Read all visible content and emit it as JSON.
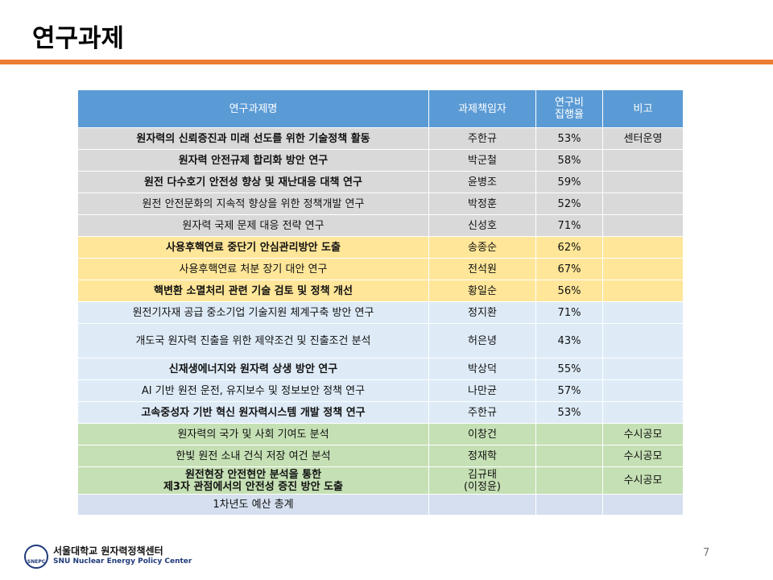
{
  "header": {
    "title": "연구과제"
  },
  "table": {
    "columns": [
      "연구과제명",
      "과제책임자",
      "연구비\n집행율",
      "비고"
    ],
    "rows": [
      {
        "cells": [
          "원자력의 신뢰증진과 미래 선도를 위한 기술정책 활동",
          "주한규",
          "53%",
          "센터운영"
        ],
        "bold": true,
        "color": "#d9d9d9"
      },
      {
        "cells": [
          "원자력 안전규제 합리화 방안 연구",
          "박군철",
          "58%",
          ""
        ],
        "bold": true,
        "color": "#d9d9d9"
      },
      {
        "cells": [
          "원전 다수호기 안전성 향상 및 재난대응 대책 연구",
          "윤병조",
          "59%",
          ""
        ],
        "bold": true,
        "color": "#d9d9d9"
      },
      {
        "cells": [
          "원전 안전문화의 지속적 향상을 위한 정책개발 연구",
          "박정훈",
          "52%",
          ""
        ],
        "bold": false,
        "color": "#d9d9d9"
      },
      {
        "cells": [
          "원자력 국제 문제 대응 전략 연구",
          "신성호",
          "71%",
          ""
        ],
        "bold": false,
        "color": "#d9d9d9"
      },
      {
        "cells": [
          "사용후핵연료 중단기 안심관리방안 도출",
          "송종순",
          "62%",
          ""
        ],
        "bold": true,
        "color": "#ffe699"
      },
      {
        "cells": [
          "사용후핵연료 처분 장기 대안 연구",
          "전석원",
          "67%",
          ""
        ],
        "bold": false,
        "color": "#ffe699"
      },
      {
        "cells": [
          "핵변환 소멸처리 관련 기술 검토 및 정책 개선",
          "황일순",
          "56%",
          ""
        ],
        "bold": true,
        "color": "#ffe699"
      },
      {
        "cells": [
          "원전기자재 공급 중소기업 기술지원 체계구축 방안 연구",
          "정지환",
          "71%",
          ""
        ],
        "bold": false,
        "color": "#deebf7"
      },
      {
        "cells": [
          "개도국 원자력 진출을 위한 제약조건 및 진출조건 분석",
          "허은녕",
          "43%",
          ""
        ],
        "bold": false,
        "color": "#deebf7"
      },
      {
        "cells": [
          "신재생에너지와 원자력 상생 방안 연구",
          "박상덕",
          "55%",
          ""
        ],
        "bold": true,
        "color": "#deebf7"
      },
      {
        "cells": [
          "AI 기반 원전 운전, 유지보수 및 정보보안 정책 연구",
          "나만균",
          "57%",
          ""
        ],
        "bold": false,
        "color": "#deebf7"
      },
      {
        "cells": [
          "고속중성자 기반 혁신 원자력시스템 개발 정책 연구",
          "주한규",
          "53%",
          ""
        ],
        "bold": true,
        "color": "#deebf7"
      },
      {
        "cells": [
          "원자력의 국가 및 사회 기여도 분석",
          "이창건",
          "",
          "수시공모"
        ],
        "bold": false,
        "color": "#c5e0b4"
      },
      {
        "cells": [
          "한빛 원전 소내 건식 저장 여건 분석",
          "정재학",
          "",
          "수시공모"
        ],
        "bold": false,
        "color": "#c5e0b4"
      },
      {
        "cells": [
          "원전현장 안전현안 분석을 통한\n제3자 관점에서의 안전성 증진 방안 도출",
          "김규태\n(이정윤)",
          "",
          "수시공모"
        ],
        "bold": true,
        "color": "#c5e0b4"
      },
      {
        "cells": [
          "1차년도 예산 총계",
          "",
          "",
          ""
        ],
        "bold": false,
        "color": "#d5dfef"
      }
    ]
  },
  "footer": {
    "logo_badge": "SNEPC",
    "org_ko": "서울대학교 원자력정책센터",
    "org_en": "SNU Nuclear Energy Policy Center",
    "page": "7"
  }
}
